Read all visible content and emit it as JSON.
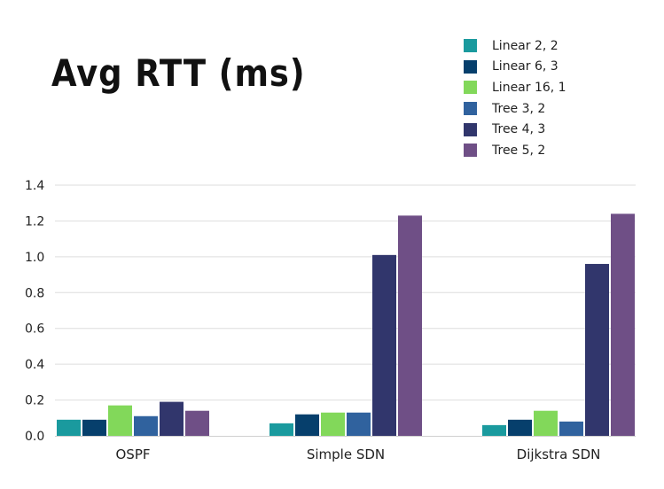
{
  "chart_data": {
    "type": "bar",
    "title": "Avg RTT (ms)",
    "xlabel": "",
    "ylabel": "",
    "ylim": [
      0,
      1.4
    ],
    "yticks": [
      "0.0",
      "0.2",
      "0.4",
      "0.6",
      "0.8",
      "1.0",
      "1.2",
      "1.4"
    ],
    "grid": true,
    "legend_position": "top-right",
    "categories": [
      "OSPF",
      "Simple SDN",
      "Dijkstra SDN"
    ],
    "series": [
      {
        "name": "Linear 2, 2",
        "color": "#1a9a9e",
        "values": [
          0.09,
          0.07,
          0.06
        ]
      },
      {
        "name": "Linear 6, 3",
        "color": "#063f6c",
        "values": [
          0.09,
          0.12,
          0.09
        ]
      },
      {
        "name": "Linear 16, 1",
        "color": "#82d85a",
        "values": [
          0.17,
          0.13,
          0.14
        ]
      },
      {
        "name": "Tree 3, 2",
        "color": "#30629e",
        "values": [
          0.11,
          0.13,
          0.08
        ]
      },
      {
        "name": "Tree 4, 3",
        "color": "#31366c",
        "values": [
          0.19,
          1.01,
          0.96
        ]
      },
      {
        "name": "Tree 5, 2",
        "color": "#6f4f86",
        "values": [
          0.14,
          1.23,
          1.24
        ]
      }
    ]
  }
}
